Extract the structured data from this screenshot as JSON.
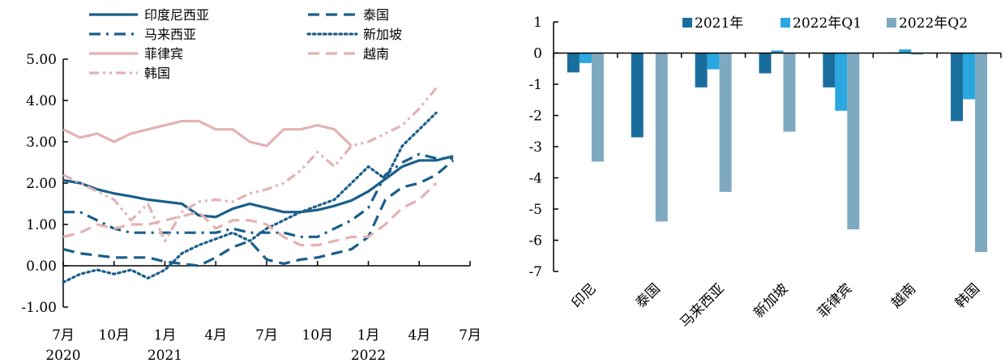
{
  "chart_data": [
    {
      "type": "line",
      "title": "",
      "xlabel": "",
      "ylabel": "",
      "ylim": [
        -1,
        5
      ],
      "yticks": [
        "-1.00",
        "0.00",
        "1.00",
        "2.00",
        "3.00",
        "4.00",
        "5.00"
      ],
      "xtick_labels": [
        {
          "month": "7月",
          "year": "2020"
        },
        {
          "month": "10月",
          "year": ""
        },
        {
          "month": "1月",
          "year": "2021"
        },
        {
          "month": "4月",
          "year": ""
        },
        {
          "month": "7月",
          "year": ""
        },
        {
          "month": "10月",
          "year": ""
        },
        {
          "month": "1月",
          "year": "2022"
        },
        {
          "month": "4月",
          "year": ""
        },
        {
          "month": "7月",
          "year": ""
        }
      ],
      "x_range": [
        0,
        24
      ],
      "legend_placement": "top",
      "series": [
        {
          "name": "印度尼西亚",
          "color": "#1a5e8a",
          "dash": "solid",
          "values": [
            2.07,
            2.0,
            1.85,
            1.75,
            1.68,
            1.6,
            1.55,
            1.5,
            1.22,
            1.18,
            1.38,
            1.5,
            1.4,
            1.3,
            1.3,
            1.35,
            1.45,
            1.58,
            1.8,
            2.1,
            2.4,
            2.55,
            2.55,
            2.65
          ]
        },
        {
          "name": "泰国",
          "color": "#1a5e8a",
          "dash": "long-dash",
          "values": [
            0.4,
            0.3,
            0.25,
            0.2,
            0.2,
            0.2,
            0.1,
            0.05,
            0.0,
            0.2,
            0.45,
            0.6,
            0.15,
            0.05,
            0.15,
            0.2,
            0.3,
            0.4,
            0.7,
            1.6,
            1.9,
            2.0,
            2.2,
            2.55
          ]
        },
        {
          "name": "马来西亚",
          "color": "#1a5e8a",
          "dash": "dash-dot",
          "values": [
            1.3,
            1.3,
            1.1,
            0.9,
            0.8,
            0.8,
            0.8,
            0.8,
            0.8,
            0.8,
            0.9,
            0.8,
            0.8,
            0.8,
            0.7,
            0.7,
            0.9,
            1.1,
            1.4,
            2.2,
            2.5,
            2.7,
            2.6,
            2.6
          ]
        },
        {
          "name": "新加坡",
          "color": "#1a5e8a",
          "dash": "dotted",
          "values": [
            -0.4,
            -0.2,
            -0.1,
            -0.2,
            -0.1,
            -0.3,
            -0.1,
            0.3,
            0.5,
            0.65,
            0.8,
            0.6,
            0.9,
            1.1,
            1.3,
            1.45,
            1.6,
            2.0,
            2.4,
            2.1,
            2.9,
            3.3,
            3.7
          ]
        },
        {
          "name": "菲律宾",
          "color": "#e3b2b4",
          "dash": "solid",
          "values": [
            3.3,
            3.1,
            3.2,
            3.0,
            3.2,
            3.3,
            3.4,
            3.5,
            3.5,
            3.3,
            3.3,
            3.0,
            2.9,
            3.3,
            3.3,
            3.4,
            3.3,
            2.9
          ]
        },
        {
          "name": "越南",
          "color": "#e3b2b4",
          "dash": "long-dash",
          "values": [
            0.7,
            0.8,
            1.0,
            0.9,
            1.0,
            1.0,
            1.1,
            1.2,
            1.3,
            0.9,
            1.1,
            1.1,
            1.0,
            0.7,
            0.5,
            0.5,
            0.6,
            0.7,
            0.7,
            1.0,
            1.4,
            1.6,
            2.0
          ]
        },
        {
          "name": "韩国",
          "color": "#e3b2b4",
          "dash": "dash-dot-dot",
          "values": [
            2.2,
            2.0,
            1.8,
            1.6,
            1.1,
            1.5,
            0.6,
            1.3,
            1.55,
            1.6,
            1.55,
            1.75,
            1.85,
            2.0,
            2.3,
            2.75,
            2.4,
            2.9,
            3.0,
            3.2,
            3.4,
            3.8,
            4.3
          ]
        }
      ]
    },
    {
      "type": "bar",
      "title": "",
      "xlabel": "",
      "ylabel": "",
      "ylim": [
        -7,
        1
      ],
      "yticks": [
        "1",
        "0",
        "-1",
        "-2",
        "-3",
        "-4",
        "-5",
        "-6",
        "-7"
      ],
      "categories": [
        "印尼",
        "泰国",
        "马来西亚",
        "新加坡",
        "菲律宾",
        "越南",
        "韩国"
      ],
      "legend_placement": "top",
      "series": [
        {
          "name": "2021年",
          "color": "#1a6e9e",
          "values": [
            -0.62,
            -2.7,
            -1.1,
            -0.65,
            -1.1,
            0.02,
            -2.18
          ]
        },
        {
          "name": "2022年Q1",
          "color": "#2aa6e0",
          "values": [
            -0.32,
            0.0,
            -0.52,
            0.08,
            -1.85,
            0.12,
            -1.48
          ]
        },
        {
          "name": "2022年Q2",
          "color": "#7fa9c0",
          "values": [
            -3.48,
            -5.4,
            -4.45,
            -2.52,
            -5.65,
            -0.05,
            -6.38
          ]
        }
      ]
    }
  ]
}
